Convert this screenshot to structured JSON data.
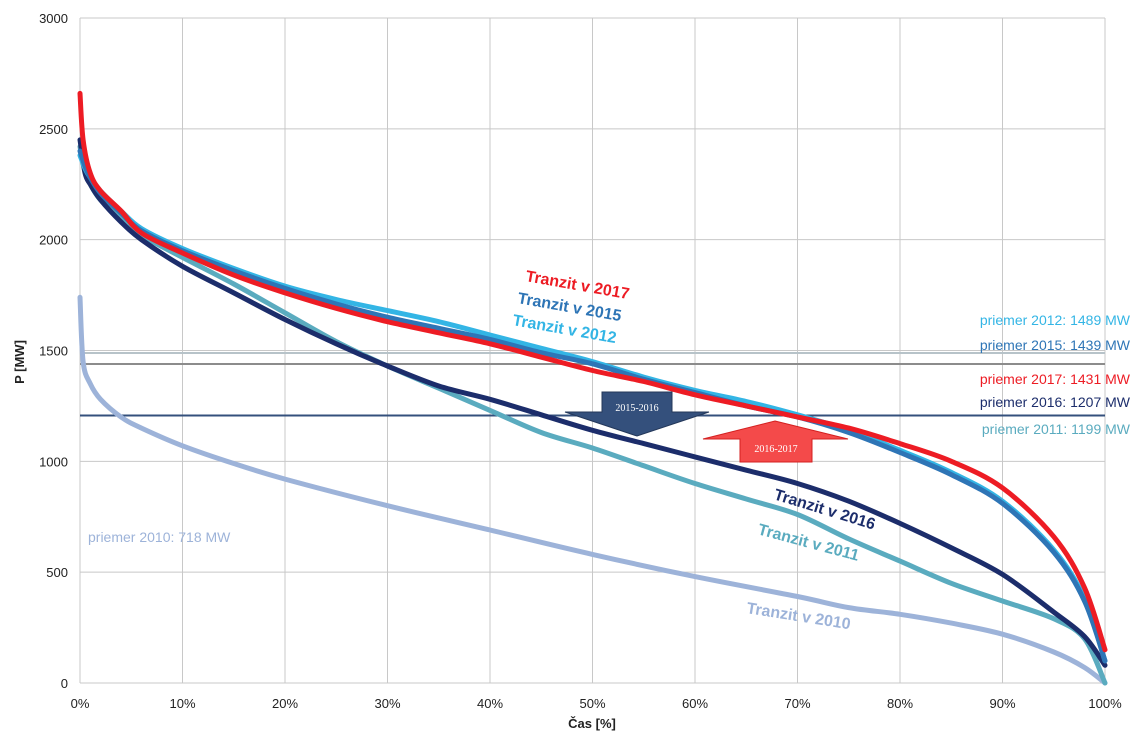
{
  "chart_data": {
    "type": "line",
    "xlabel": "Čas [%]",
    "ylabel": "P [MW]",
    "xlim": [
      0,
      100
    ],
    "ylim": [
      0,
      3000
    ],
    "grid": true,
    "x_ticks": [
      "0%",
      "10%",
      "20%",
      "30%",
      "40%",
      "50%",
      "60%",
      "70%",
      "80%",
      "90%",
      "100%"
    ],
    "y_ticks": [
      "0",
      "500",
      "1000",
      "1500",
      "2000",
      "2500",
      "3000"
    ],
    "series": [
      {
        "name": "Tranzit v 2010",
        "color": "#9db3d9",
        "x": [
          0,
          0.3,
          1,
          2,
          4,
          6,
          10,
          15,
          20,
          30,
          40,
          50,
          60,
          70,
          75,
          80,
          85,
          90,
          95,
          98,
          100
        ],
        "y": [
          1740,
          1450,
          1350,
          1280,
          1200,
          1150,
          1070,
          990,
          920,
          800,
          690,
          580,
          480,
          390,
          340,
          310,
          270,
          220,
          140,
          70,
          0
        ]
      },
      {
        "name": "Tranzit v 2011",
        "color": "#5aabbf",
        "x": [
          0,
          0.5,
          1,
          2,
          4,
          6,
          10,
          15,
          20,
          25,
          30,
          35,
          40,
          45,
          50,
          55,
          60,
          65,
          70,
          75,
          80,
          85,
          90,
          95,
          98,
          100
        ],
        "y": [
          2420,
          2300,
          2250,
          2180,
          2100,
          2020,
          1920,
          1800,
          1670,
          1540,
          1430,
          1330,
          1230,
          1130,
          1060,
          980,
          900,
          830,
          760,
          650,
          550,
          450,
          370,
          290,
          200,
          0
        ]
      },
      {
        "name": "Tranzit v 2016",
        "color": "#1c2d6b",
        "x": [
          0,
          0.5,
          1,
          2,
          4,
          6,
          10,
          15,
          20,
          25,
          30,
          35,
          40,
          45,
          50,
          55,
          60,
          65,
          70,
          75,
          80,
          85,
          90,
          95,
          98,
          100
        ],
        "y": [
          2450,
          2300,
          2250,
          2180,
          2080,
          2000,
          1880,
          1760,
          1640,
          1530,
          1430,
          1340,
          1280,
          1210,
          1140,
          1080,
          1020,
          960,
          900,
          820,
          720,
          610,
          490,
          320,
          210,
          80
        ]
      },
      {
        "name": "Tranzit v 2012",
        "color": "#33b5e5",
        "x": [
          0,
          0.5,
          1,
          2,
          4,
          6,
          10,
          15,
          20,
          25,
          30,
          35,
          40,
          45,
          50,
          55,
          60,
          65,
          70,
          75,
          80,
          85,
          90,
          95,
          98,
          100
        ],
        "y": [
          2380,
          2320,
          2280,
          2220,
          2130,
          2050,
          1960,
          1870,
          1790,
          1730,
          1680,
          1630,
          1570,
          1510,
          1450,
          1380,
          1320,
          1270,
          1210,
          1140,
          1050,
          950,
          820,
          600,
          380,
          100
        ]
      },
      {
        "name": "Tranzit v 2015",
        "color": "#2e75b6",
        "x": [
          0,
          0.5,
          1,
          2,
          4,
          6,
          10,
          15,
          20,
          25,
          30,
          35,
          40,
          45,
          50,
          55,
          60,
          65,
          70,
          75,
          80,
          85,
          90,
          95,
          98,
          100
        ],
        "y": [
          2400,
          2330,
          2280,
          2210,
          2120,
          2040,
          1950,
          1860,
          1780,
          1710,
          1650,
          1600,
          1550,
          1490,
          1440,
          1370,
          1310,
          1250,
          1200,
          1130,
          1040,
          940,
          810,
          590,
          370,
          100
        ]
      },
      {
        "name": "Tranzit v 2017",
        "color": "#ed1c24",
        "x": [
          0,
          0.3,
          1,
          2,
          4,
          6,
          10,
          15,
          20,
          25,
          30,
          35,
          40,
          45,
          50,
          55,
          60,
          65,
          70,
          75,
          80,
          85,
          90,
          95,
          98,
          100
        ],
        "y": [
          2660,
          2450,
          2300,
          2220,
          2130,
          2030,
          1940,
          1840,
          1760,
          1690,
          1630,
          1580,
          1530,
          1470,
          1410,
          1360,
          1300,
          1250,
          1200,
          1150,
          1080,
          1000,
          880,
          660,
          430,
          150
        ]
      }
    ],
    "averages": [
      {
        "label": "priemer 2012: 1489 MW",
        "value": 1489,
        "color": "#33b5e5",
        "line": true,
        "line_color": "#b7c3c9"
      },
      {
        "label": "priemer 2015: 1439 MW",
        "value": 1439,
        "color": "#2e75b6",
        "line": true,
        "line_color": "#8c8c8c"
      },
      {
        "label": "priemer 2017: 1431 MW",
        "value": 1431,
        "color": "#ed1c24",
        "line": false
      },
      {
        "label": "priemer 2016: 1207 MW",
        "value": 1207,
        "color": "#1c2d6b",
        "line": true,
        "line_color": "#34507c"
      },
      {
        "label": "priemer 2011: 1199 MW",
        "value": 1199,
        "color": "#5aabbf",
        "line": false
      },
      {
        "label": "priemer 2010: 718 MW",
        "value": 718,
        "color": "#9db3d9",
        "line": false
      }
    ],
    "series_labels": [
      {
        "text": "Tranzit v 2017",
        "color": "#ed1c24"
      },
      {
        "text": "Tranzit v 2015",
        "color": "#2e75b6"
      },
      {
        "text": "Tranzit v 2012",
        "color": "#33b5e5"
      },
      {
        "text": "Tranzit v 2016",
        "color": "#1c2d6b"
      },
      {
        "text": "Tranzit v 2011",
        "color": "#5aabbf"
      },
      {
        "text": "Tranzit v 2010",
        "color": "#9db3d9"
      }
    ],
    "annotations": [
      {
        "text": "2015-2016",
        "direction": "down",
        "color": "#34507c"
      },
      {
        "text": "2016-2017",
        "direction": "up",
        "color": "#f44a4a"
      }
    ]
  }
}
